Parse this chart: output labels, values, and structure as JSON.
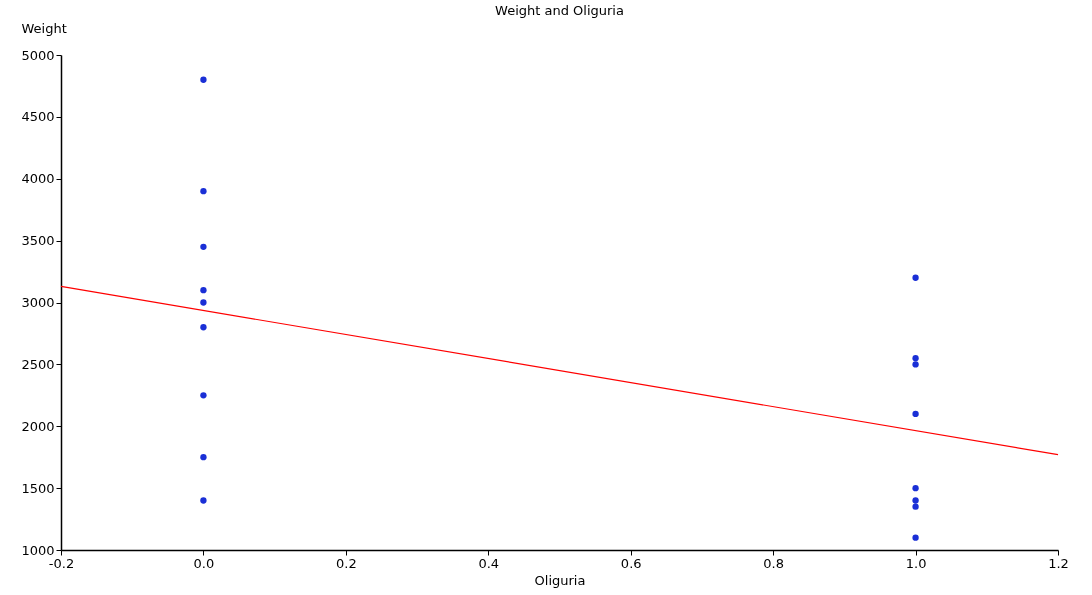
{
  "chart_data": {
    "type": "scatter",
    "title": "Weight and Oliguria",
    "xlabel": "Oliguria",
    "ylabel": "Weight",
    "xlim": [
      -0.2,
      1.2
    ],
    "xticks": [
      {
        "value": -0.2,
        "label": "-0.2"
      },
      {
        "value": 0,
        "label": "0.0"
      },
      {
        "value": 0.2,
        "label": "0.2"
      },
      {
        "value": 0.4,
        "label": "0.4"
      },
      {
        "value": 0.6,
        "label": "0.6"
      },
      {
        "value": 0.8,
        "label": "0.8"
      },
      {
        "value": 1,
        "label": "1.0"
      },
      {
        "value": 1.2,
        "label": "1.2"
      }
    ],
    "ylim": [
      1000,
      5000
    ],
    "yticks": [
      1000,
      1500,
      2000,
      2500,
      3000,
      3500,
      4000,
      4500,
      5000
    ],
    "grid": false,
    "marker": "circle",
    "series": [
      {
        "color": "#1a2fd6",
        "x": [
          0,
          0,
          0,
          0,
          0,
          0,
          0,
          0,
          0,
          1,
          1,
          1,
          1,
          1,
          1,
          1,
          1
        ],
        "values": [
          4800,
          3900,
          3450,
          3100,
          3000,
          2800,
          2250,
          1750,
          1400,
          3200,
          2550,
          2500,
          2100,
          1500,
          1400,
          1350,
          1100
        ]
      },
      {
        "type": "line",
        "color": "#ff0000",
        "line_style": "solid",
        "marker": "none",
        "x": [
          -0.2,
          1.2
        ],
        "values": [
          3130,
          1770
        ]
      }
    ]
  }
}
